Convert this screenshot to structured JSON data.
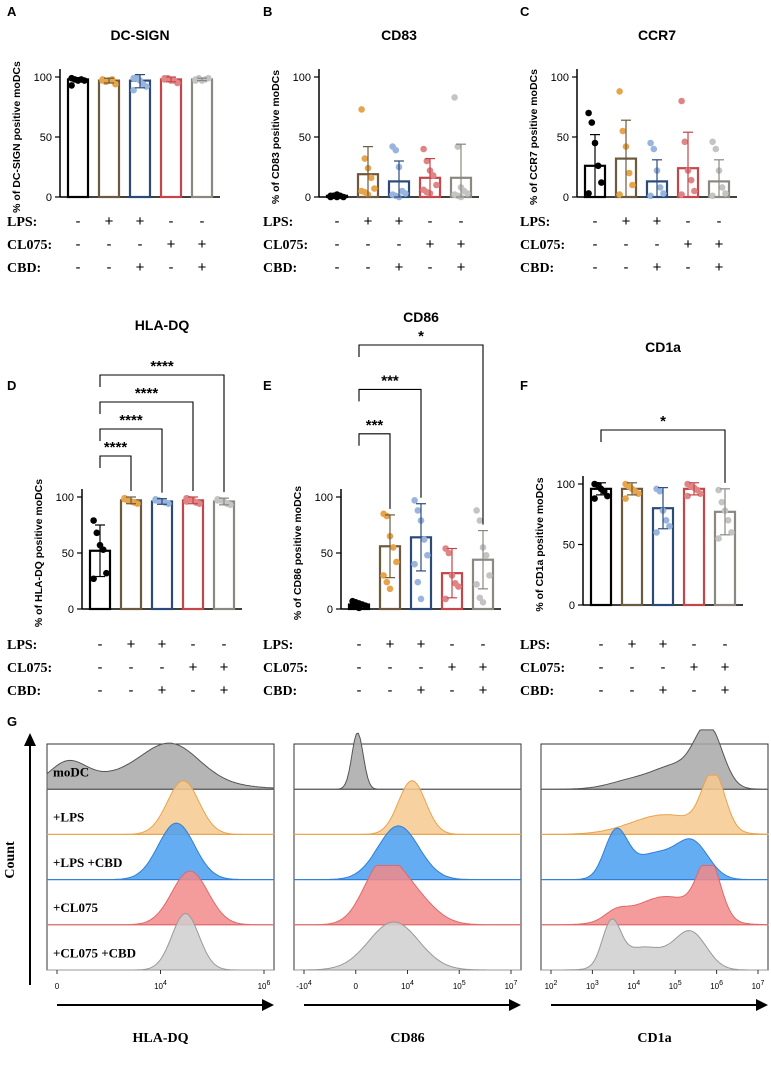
{
  "colors": {
    "black": "#000000",
    "brown": "#6b5a3e",
    "orange": "#e8a44a",
    "navy": "#2b4a78",
    "lightblue": "#9ab5dd",
    "red": "#c4454a",
    "pink": "#e08585",
    "gray": "#8a8880",
    "lightgray": "#c4c4c4",
    "hist_gray": "#a8a8a8",
    "hist_orange": "#f6c98f",
    "hist_blue": "#4a9ff0",
    "hist_red": "#f28a8a",
    "hist_lightgray": "#cfcfcf"
  },
  "conditions": {
    "labels": [
      "LPS:",
      "CL075:",
      "CBD:"
    ],
    "LPS": [
      "-",
      "+",
      "+",
      "-",
      "-"
    ],
    "CL075": [
      "-",
      "-",
      "-",
      "+",
      "+"
    ],
    "CBD": [
      "-",
      "-",
      "+",
      "-",
      "+"
    ]
  },
  "chart_data": [
    {
      "panel": "A",
      "type": "bar",
      "title": "DC-SIGN",
      "ylabel": "% of DC-SIGN positive moDCs",
      "ylim": [
        0,
        100
      ],
      "yticks": [
        0,
        50,
        100
      ],
      "categories": [
        "moDC",
        "LPS",
        "LPS+CBD",
        "CL075",
        "CL075+CBD"
      ],
      "values": [
        98,
        97,
        97,
        98,
        98
      ],
      "errors": [
        1.5,
        2,
        6,
        2,
        1
      ],
      "points": [
        [
          99,
          98,
          97,
          98,
          97,
          93
        ],
        [
          98,
          96,
          97,
          98,
          94,
          97
        ],
        [
          99,
          100,
          97,
          94,
          92,
          89,
          99
        ],
        [
          98,
          99,
          97,
          97,
          95,
          99
        ],
        [
          98,
          99,
          97,
          98,
          99,
          97
        ]
      ],
      "significance": []
    },
    {
      "panel": "B",
      "type": "bar",
      "title": "CD83",
      "ylabel": "% of CD83 positive moDCs",
      "ylim": [
        0,
        100
      ],
      "yticks": [
        0,
        50,
        100
      ],
      "categories": [
        "moDC",
        "LPS",
        "LPS+CBD",
        "CL075",
        "CL075+CBD"
      ],
      "values": [
        1,
        19,
        13,
        16,
        16
      ],
      "errors": [
        1,
        23,
        17,
        16,
        28
      ],
      "points": [
        [
          0,
          1,
          2,
          1,
          0,
          1,
          1,
          0
        ],
        [
          73,
          32,
          24,
          16,
          7,
          5,
          4,
          2
        ],
        [
          42,
          39,
          25,
          5,
          3,
          2,
          1,
          0
        ],
        [
          40,
          30,
          22,
          18,
          10,
          6,
          4,
          3
        ],
        [
          83,
          42,
          8,
          5,
          3,
          2,
          1,
          0
        ]
      ],
      "significance": []
    },
    {
      "panel": "C",
      "type": "bar",
      "title": "CCR7",
      "ylabel": "% of CCR7 positive moDCs",
      "ylim": [
        0,
        100
      ],
      "yticks": [
        0,
        50,
        100
      ],
      "categories": [
        "moDC",
        "LPS",
        "LPS+CBD",
        "CL075",
        "CL075+CBD"
      ],
      "values": [
        26,
        32,
        13,
        24,
        13
      ],
      "errors": [
        26,
        32,
        18,
        30,
        18
      ],
      "points": [
        [
          70,
          62,
          45,
          26,
          12,
          3
        ],
        [
          88,
          55,
          42,
          20,
          10,
          2
        ],
        [
          45,
          40,
          22,
          8,
          3,
          1
        ],
        [
          80,
          46,
          22,
          14,
          5,
          2
        ],
        [
          46,
          40,
          22,
          8,
          3,
          1
        ]
      ],
      "significance": []
    },
    {
      "panel": "D",
      "type": "bar",
      "title": "HLA-DQ",
      "ylabel": "% of HLA-DQ positive moDCs",
      "ylim": [
        0,
        100
      ],
      "yticks": [
        0,
        50,
        100
      ],
      "categories": [
        "moDC",
        "LPS",
        "LPS+CBD",
        "CL075",
        "CL075+CBD"
      ],
      "values": [
        52,
        97,
        96,
        97,
        96
      ],
      "errors": [
        23,
        3,
        2.5,
        3,
        3
      ],
      "points": [
        [
          79,
          68,
          57,
          53,
          32,
          27
        ],
        [
          99,
          97,
          96,
          95,
          94,
          98
        ],
        [
          98,
          97,
          96,
          95,
          94,
          97
        ],
        [
          99,
          98,
          97,
          95,
          94,
          96
        ],
        [
          98,
          97,
          96,
          94,
          93,
          97
        ]
      ],
      "significance": [
        {
          "label": "****",
          "from": 0,
          "to": 1
        },
        {
          "label": "****",
          "from": 0,
          "to": 2
        },
        {
          "label": "****",
          "from": 0,
          "to": 3
        },
        {
          "label": "****",
          "from": 0,
          "to": 4
        }
      ]
    },
    {
      "panel": "E",
      "type": "bar",
      "title": "CD86",
      "ylabel": "% of CD86 positive moDCs",
      "ylim": [
        0,
        100
      ],
      "yticks": [
        0,
        50,
        100
      ],
      "categories": [
        "moDC",
        "LPS",
        "LPS+CBD",
        "CL075",
        "CL075+CBD"
      ],
      "values": [
        4,
        56,
        64,
        32,
        44
      ],
      "errors": [
        2,
        28,
        30,
        22,
        26
      ],
      "points": [
        [
          7,
          6,
          5,
          4,
          3,
          2,
          2,
          1
        ],
        [
          85,
          83,
          65,
          55,
          42,
          30,
          24,
          18
        ],
        [
          97,
          88,
          79,
          62,
          48,
          40,
          24,
          9
        ],
        [
          54,
          50,
          30,
          23,
          20,
          9
        ],
        [
          88,
          79,
          55,
          48,
          30,
          22,
          10,
          6
        ]
      ],
      "significance": [
        {
          "label": "***",
          "from": 0,
          "to": 1
        },
        {
          "label": "***",
          "from": 0,
          "to": 2
        },
        {
          "label": "*",
          "from": 0,
          "to": 4
        }
      ]
    },
    {
      "panel": "F",
      "type": "bar",
      "title": "CD1a",
      "ylabel": "% of CD1a positive moDCs",
      "ylim": [
        0,
        100
      ],
      "yticks": [
        0,
        50,
        100
      ],
      "categories": [
        "moDC",
        "LPS",
        "LPS+CBD",
        "CL075",
        "CL075+CBD"
      ],
      "values": [
        96,
        96,
        80,
        96,
        77
      ],
      "errors": [
        5,
        5,
        17,
        5,
        19
      ],
      "points": [
        [
          100,
          99,
          96,
          94,
          90,
          88
        ],
        [
          100,
          98,
          96,
          94,
          92,
          88
        ],
        [
          96,
          94,
          78,
          70,
          65,
          60
        ],
        [
          100,
          98,
          97,
          95,
          92,
          90
        ],
        [
          95,
          85,
          78,
          70,
          60,
          55
        ]
      ],
      "significance": [
        {
          "label": "*",
          "from": 0,
          "to": 4
        }
      ]
    }
  ],
  "panels": {
    "A": "A",
    "B": "B",
    "C": "C",
    "D": "D",
    "E": "E",
    "F": "F",
    "G": "G"
  },
  "histograms": {
    "y_axis_label": "Count",
    "row_labels": [
      "moDC",
      "+LPS",
      "+LPS +CBD",
      "+CL075",
      "+CL075 +CBD"
    ],
    "plots": [
      {
        "marker": "HLA-DQ",
        "tick_labels": [
          "0",
          "10",
          "4",
          "10",
          "6"
        ],
        "ticks": [
          {
            "base": "0",
            "exp": ""
          },
          {
            "base": "10",
            "exp": "4"
          },
          {
            "base": "10",
            "exp": "6"
          }
        ],
        "peaks": [
          {
            "modes": [
              {
                "c": 0.09,
                "w": 0.08,
                "h": 0.38
              },
              {
                "c": 0.55,
                "w": 0.12,
                "h": 0.55
              },
              {
                "c": 0.42,
                "w": 0.25,
                "h": 0.3
              }
            ]
          },
          {
            "modes": [
              {
                "c": 0.6,
                "w": 0.07,
                "h": 0.95
              }
            ]
          },
          {
            "modes": [
              {
                "c": 0.57,
                "w": 0.08,
                "h": 1.0
              }
            ]
          },
          {
            "modes": [
              {
                "c": 0.63,
                "w": 0.08,
                "h": 0.95
              }
            ]
          },
          {
            "modes": [
              {
                "c": 0.61,
                "w": 0.06,
                "h": 1.0
              }
            ]
          }
        ]
      },
      {
        "marker": "CD86",
        "ticks": [
          {
            "base": "-10",
            "exp": "4"
          },
          {
            "base": "0",
            "exp": ""
          },
          {
            "base": "10",
            "exp": "4"
          },
          {
            "base": "10",
            "exp": "5"
          },
          {
            "base": "10",
            "exp": "7"
          }
        ],
        "peaks": [
          {
            "modes": [
              {
                "c": 0.28,
                "w": 0.025,
                "h": 1.0
              }
            ]
          },
          {
            "modes": [
              {
                "c": 0.52,
                "w": 0.06,
                "h": 0.95
              }
            ]
          },
          {
            "modes": [
              {
                "c": 0.46,
                "w": 0.09,
                "h": 0.95
              }
            ]
          },
          {
            "modes": [
              {
                "c": 0.38,
                "w": 0.08,
                "h": 0.85
              },
              {
                "c": 0.5,
                "w": 0.1,
                "h": 0.6
              }
            ]
          },
          {
            "modes": [
              {
                "c": 0.44,
                "w": 0.11,
                "h": 0.85
              }
            ]
          }
        ]
      },
      {
        "marker": "CD1a",
        "ticks": [
          {
            "base": "10",
            "exp": "2"
          },
          {
            "base": "10",
            "exp": "3"
          },
          {
            "base": "10",
            "exp": "4"
          },
          {
            "base": "10",
            "exp": "5"
          },
          {
            "base": "10",
            "exp": "6"
          },
          {
            "base": "10",
            "exp": "7"
          }
        ],
        "peaks": [
          {
            "modes": [
              {
                "c": 0.74,
                "w": 0.06,
                "h": 1.0
              },
              {
                "c": 0.6,
                "w": 0.1,
                "h": 0.4
              },
              {
                "c": 0.4,
                "w": 0.1,
                "h": 0.15
              }
            ]
          },
          {
            "modes": [
              {
                "c": 0.76,
                "w": 0.05,
                "h": 1.0
              },
              {
                "c": 0.55,
                "w": 0.15,
                "h": 0.35
              }
            ]
          },
          {
            "modes": [
              {
                "c": 0.33,
                "w": 0.05,
                "h": 0.8
              },
              {
                "c": 0.5,
                "w": 0.1,
                "h": 0.45
              },
              {
                "c": 0.67,
                "w": 0.07,
                "h": 0.6
              }
            ]
          },
          {
            "modes": [
              {
                "c": 0.74,
                "w": 0.05,
                "h": 1.0
              },
              {
                "c": 0.55,
                "w": 0.14,
                "h": 0.5
              },
              {
                "c": 0.33,
                "w": 0.05,
                "h": 0.15
              }
            ]
          },
          {
            "modes": [
              {
                "c": 0.31,
                "w": 0.04,
                "h": 0.75
              },
              {
                "c": 0.45,
                "w": 0.1,
                "h": 0.4
              },
              {
                "c": 0.66,
                "w": 0.07,
                "h": 0.65
              }
            ]
          }
        ]
      }
    ]
  }
}
